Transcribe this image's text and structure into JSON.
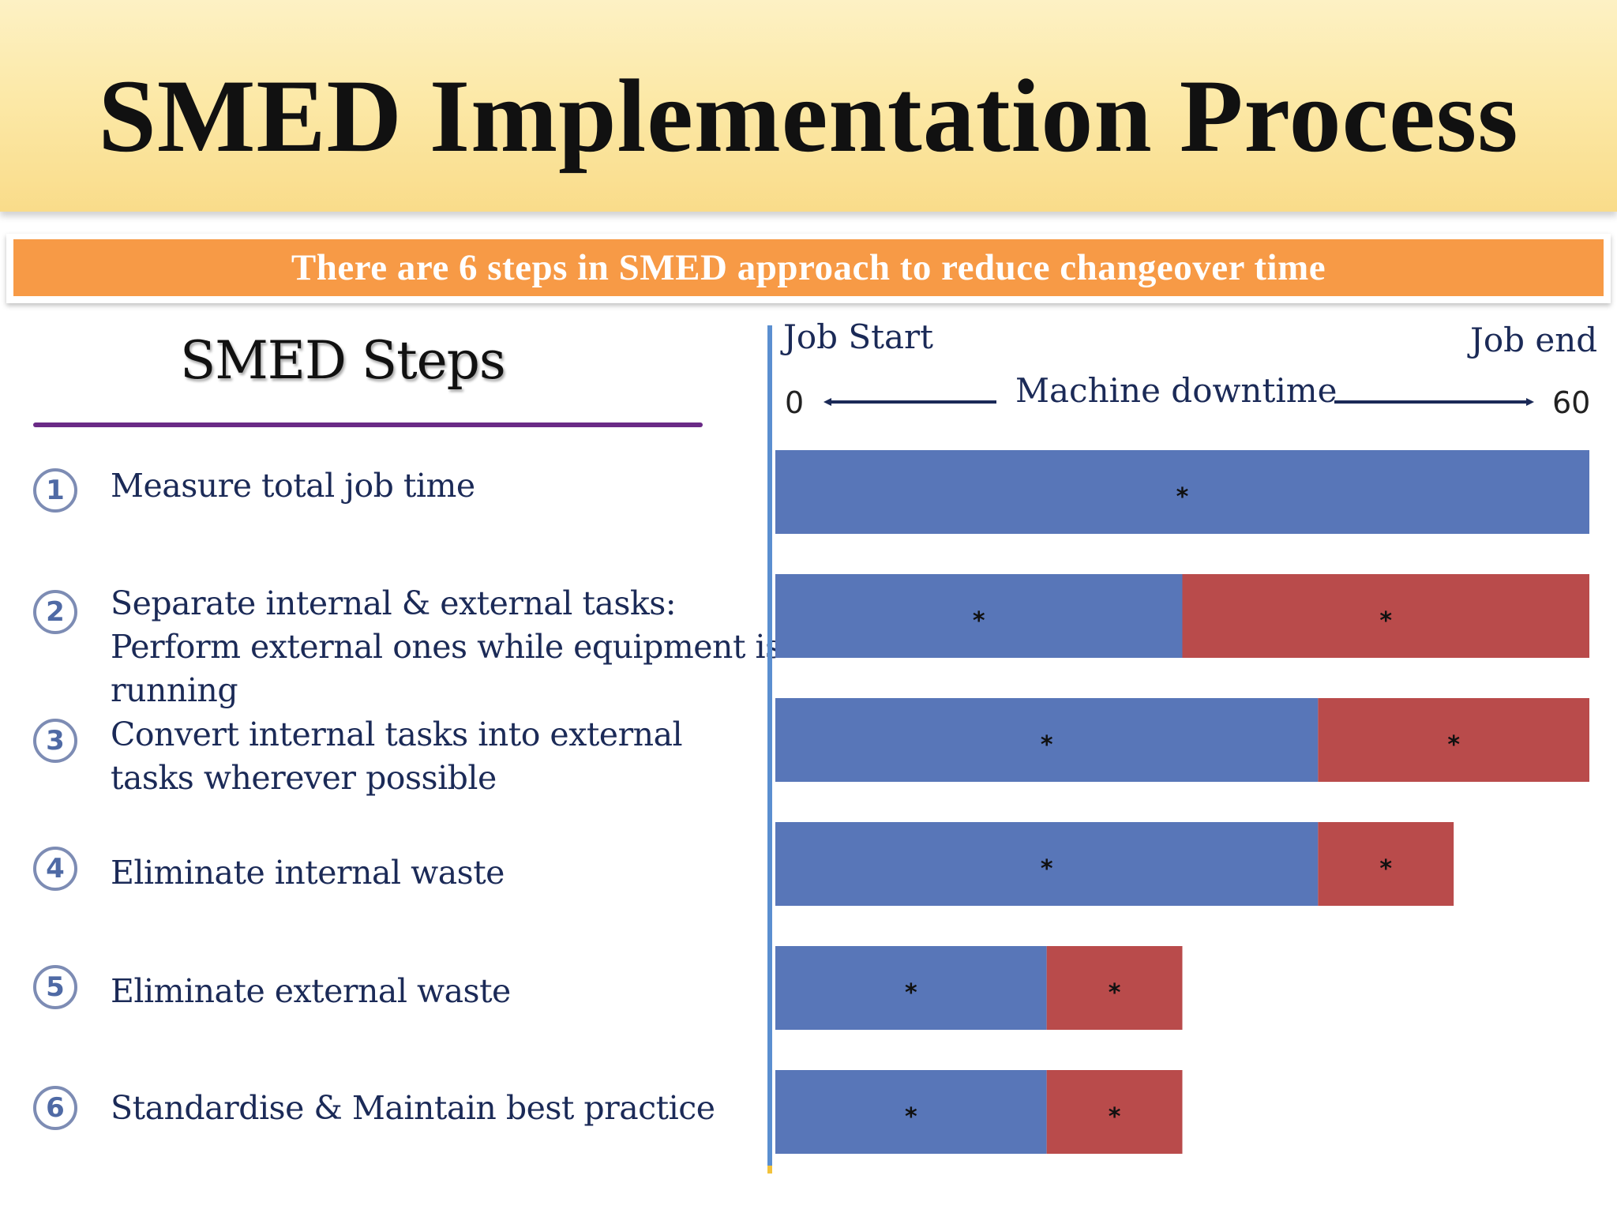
{
  "title": "SMED Implementation Process",
  "banner": "There are 6 steps in SMED approach to reduce changeover time",
  "steps_heading": "SMED Steps",
  "steps": [
    {
      "num": "1",
      "text": "Measure total  job time"
    },
    {
      "num": "2",
      "text": "Separate internal & external tasks: Perform external ones while equipment is running"
    },
    {
      "num": "3",
      "text": "Convert internal tasks into external tasks wherever possible"
    },
    {
      "num": "4",
      "text": "Eliminate internal waste"
    },
    {
      "num": "5",
      "text": "Eliminate external waste"
    },
    {
      "num": "6",
      "text": "Standardise & Maintain best practice"
    }
  ],
  "timeline": {
    "start_label": "Job Start",
    "end_label": "Job end",
    "axis_label": "Machine downtime",
    "min_label": "0",
    "max_label": "60"
  },
  "chart_data": {
    "type": "bar",
    "orientation": "horizontal",
    "stacked": true,
    "categories": [
      "1",
      "2",
      "3",
      "4",
      "5",
      "6"
    ],
    "xlim": [
      0,
      60
    ],
    "series": [
      {
        "color": "#5876b8",
        "values": [
          60,
          30,
          40,
          40,
          20,
          20
        ]
      },
      {
        "color": "#b94b4b",
        "values": [
          0,
          30,
          20,
          10,
          10,
          10
        ]
      }
    ],
    "bar_label": "*"
  }
}
